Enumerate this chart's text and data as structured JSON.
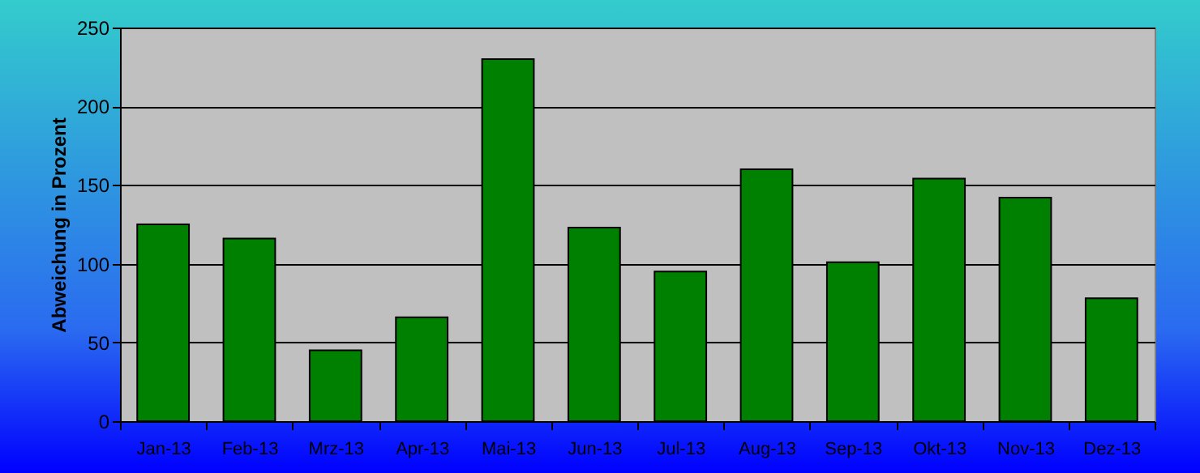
{
  "chart_data": {
    "type": "bar",
    "ylabel": "Abweichung in Prozent",
    "categories": [
      "Jan-13",
      "Feb-13",
      "Mrz-13",
      "Apr-13",
      "Mai-13",
      "Jun-13",
      "Jul-13",
      "Aug-13",
      "Sep-13",
      "Okt-13",
      "Nov-13",
      "Dez-13"
    ],
    "values": [
      125,
      116,
      45,
      66,
      230,
      123,
      95,
      160,
      101,
      154,
      142,
      78
    ],
    "color": "#008000",
    "ylim": [
      0,
      250
    ],
    "yticks": [
      0,
      50,
      100,
      150,
      200,
      250
    ],
    "grid": "y"
  }
}
